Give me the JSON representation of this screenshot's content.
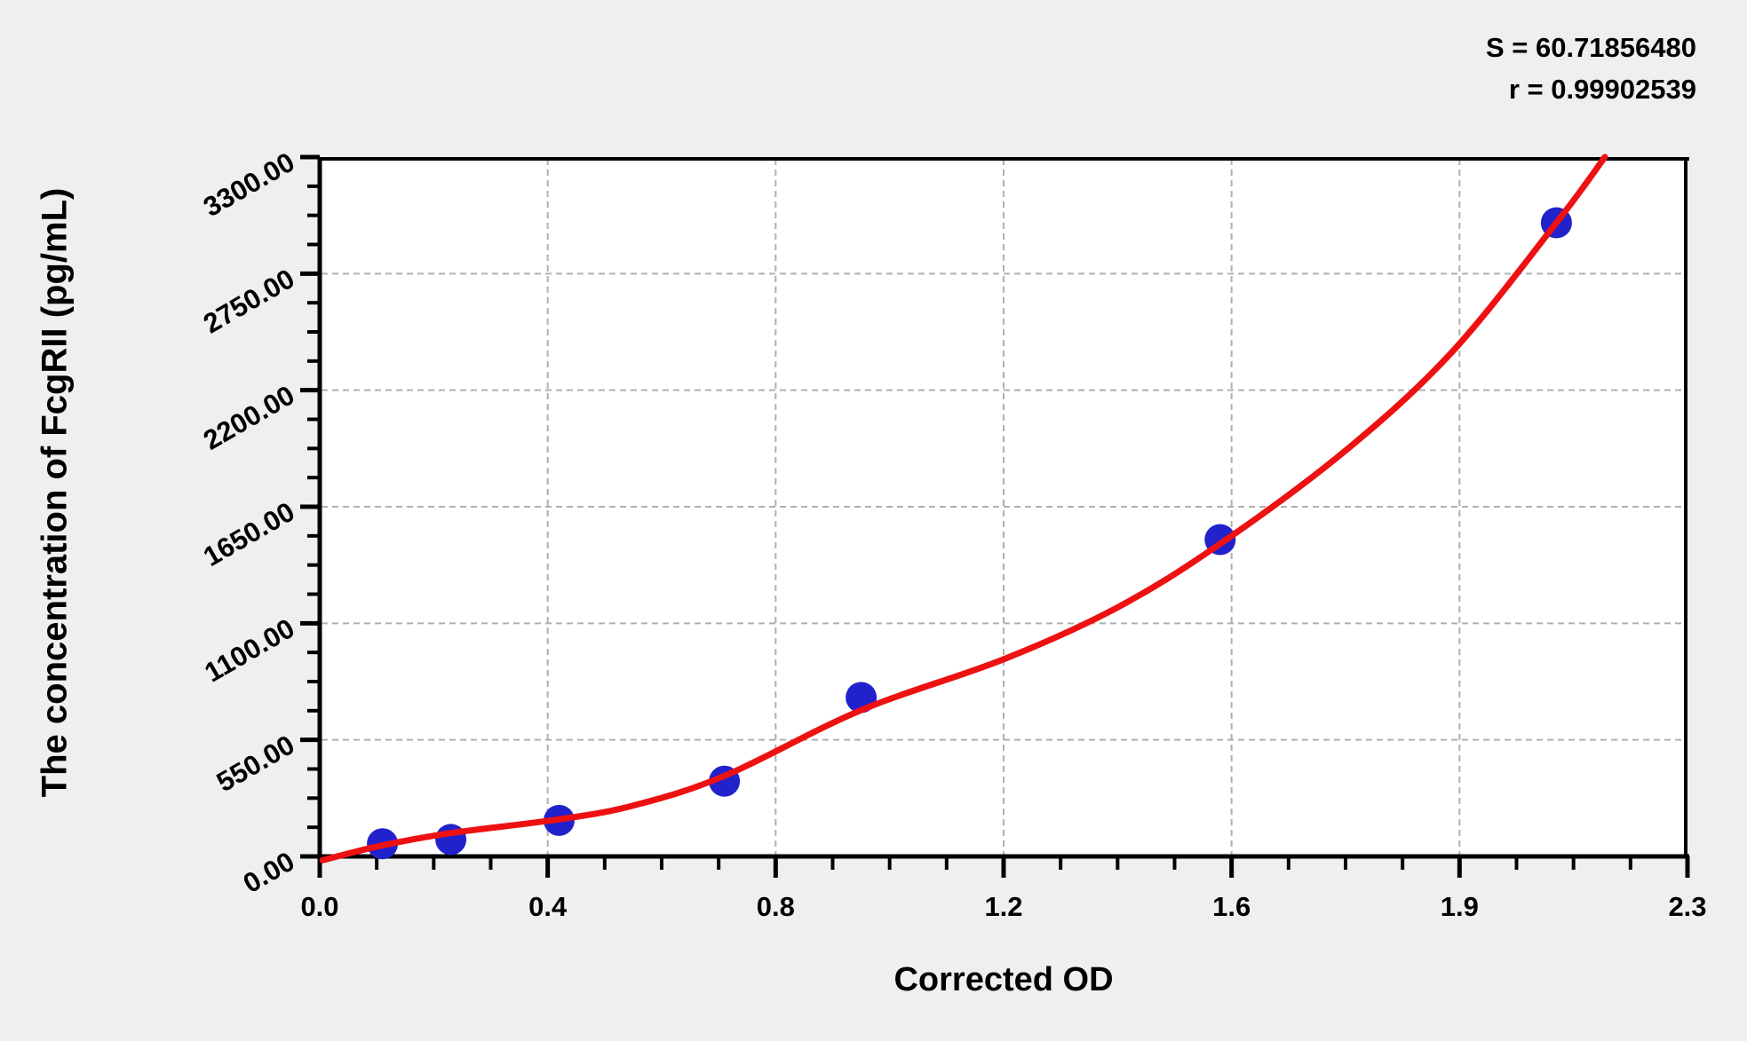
{
  "stats": {
    "s_label": "S = 60.71856480",
    "r_label": "r = 0.99902539"
  },
  "chart_data": {
    "type": "scatter",
    "title": "",
    "xlabel": "Corrected OD",
    "ylabel": "The concentration of FcgRII (pg/mL)",
    "x_tick_labels": [
      "0.0",
      "0.4",
      "0.8",
      "1.2",
      "1.6",
      "1.9",
      "2.3"
    ],
    "x_tick_values": [
      0,
      0.4,
      0.8,
      1.2,
      1.6,
      1.9,
      2.3
    ],
    "y_tick_labels": [
      "0.00",
      "550.00",
      "1100.00",
      "1650.00",
      "2200.00",
      "2750.00",
      "3300.00"
    ],
    "y_tick_values": [
      0,
      550,
      1100,
      1650,
      2200,
      2750,
      3300
    ],
    "xlim": [
      0,
      2.3
    ],
    "ylim": [
      0,
      3300
    ],
    "minor_ticks_per_interval": 3,
    "grid": "dashed",
    "legend_position": "none",
    "fit": {
      "S": "60.71856480",
      "r": "0.99902539"
    },
    "series": [
      {
        "name": "standard-points",
        "type": "scatter",
        "points": [
          [
            0.11,
            60
          ],
          [
            0.23,
            80
          ],
          [
            0.42,
            170
          ],
          [
            0.71,
            355
          ],
          [
            0.95,
            750
          ],
          [
            1.58,
            1495
          ],
          [
            2.07,
            2990
          ]
        ]
      },
      {
        "name": "fitted-curve",
        "type": "line",
        "points": [
          [
            0.005,
            -18
          ],
          [
            0.11,
            52
          ],
          [
            0.23,
            110
          ],
          [
            0.42,
            175
          ],
          [
            0.55,
            240
          ],
          [
            0.71,
            380
          ],
          [
            0.95,
            690
          ],
          [
            1.2,
            930
          ],
          [
            1.4,
            1175
          ],
          [
            1.58,
            1475
          ],
          [
            1.75,
            1915
          ],
          [
            1.89,
            2380
          ],
          [
            2.07,
            2990
          ],
          [
            2.155,
            3300
          ]
        ]
      }
    ],
    "colors": {
      "background": "#efefef",
      "plot_background": "#ffffff",
      "axis": "#000000",
      "grid": "#b0b0b0",
      "point": "#2222cc",
      "curve": "#ee1111",
      "text": "#000000"
    }
  }
}
